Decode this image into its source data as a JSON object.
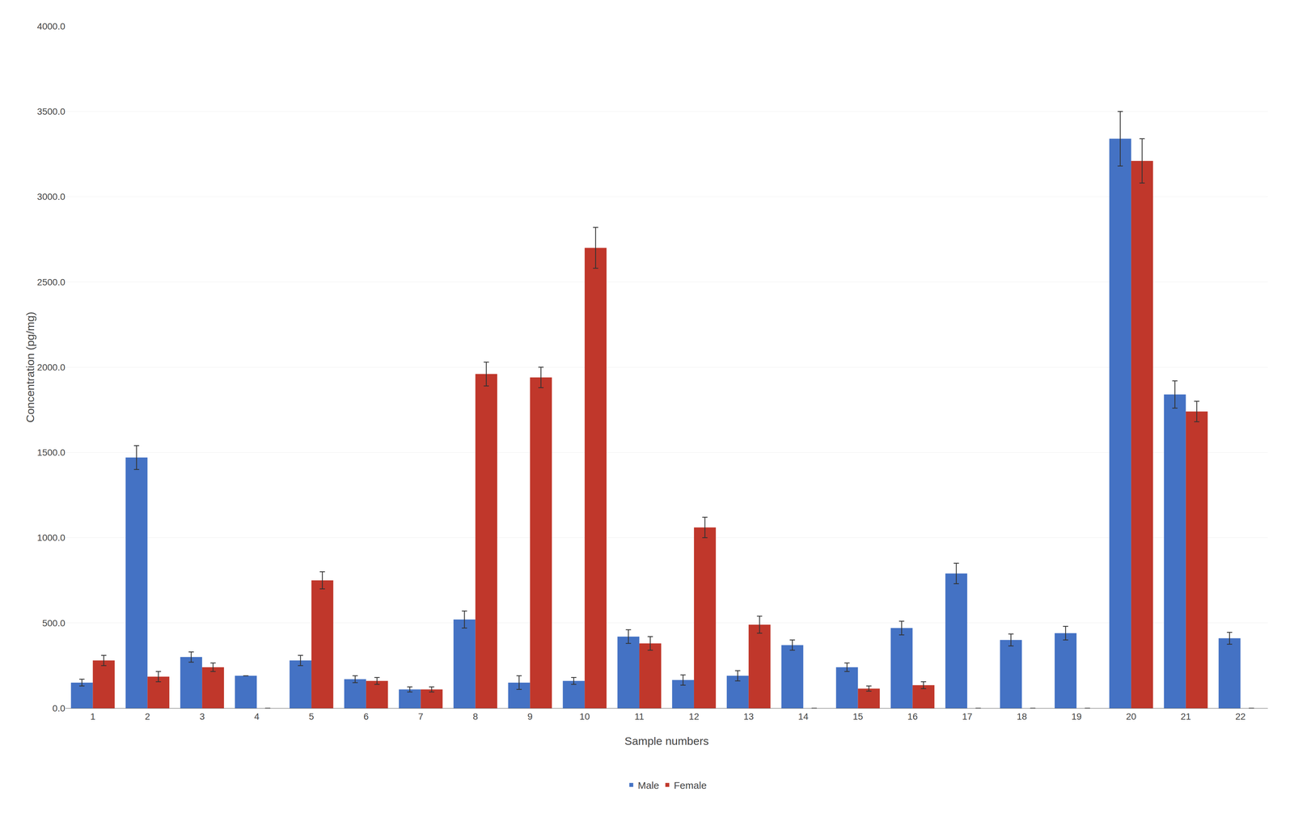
{
  "chart_data": {
    "type": "bar",
    "xlabel": "Sample numbers",
    "ylabel": "Concentration (pg/mg)",
    "categories": [
      1,
      2,
      3,
      4,
      5,
      6,
      7,
      8,
      9,
      10,
      11,
      12,
      13,
      14,
      15,
      16,
      17,
      18,
      19,
      20,
      21,
      22
    ],
    "series": [
      {
        "name": "Male",
        "color": "#4472C4",
        "values": [
          150,
          1470,
          300,
          190,
          280,
          170,
          110,
          520,
          150,
          160,
          420,
          165,
          190,
          370,
          240,
          470,
          790,
          400,
          440,
          3340,
          1840,
          410
        ],
        "errors": [
          20,
          70,
          30,
          0,
          30,
          20,
          15,
          50,
          40,
          20,
          40,
          30,
          30,
          30,
          25,
          40,
          60,
          35,
          40,
          160,
          80,
          35
        ]
      },
      {
        "name": "Female",
        "color": "#C0372B",
        "values": [
          280,
          185,
          240,
          0,
          750,
          160,
          110,
          1960,
          1940,
          2700,
          380,
          1060,
          490,
          0,
          115,
          135,
          0,
          0,
          0,
          3210,
          1740,
          0
        ],
        "errors": [
          30,
          30,
          25,
          0,
          50,
          20,
          15,
          70,
          60,
          120,
          40,
          60,
          50,
          0,
          15,
          20,
          0,
          0,
          0,
          130,
          60,
          0
        ]
      }
    ],
    "ylim": [
      0,
      4000
    ],
    "yticks": [
      {
        "value": 0,
        "label": "0.0"
      },
      {
        "value": 500,
        "label": "500.0"
      },
      {
        "value": 1000,
        "label": "1000.0"
      },
      {
        "value": 1500,
        "label": "1500.0"
      },
      {
        "value": 2000,
        "label": "2000.0"
      },
      {
        "value": 2500,
        "label": "2500.0"
      },
      {
        "value": 3000,
        "label": "3000.0"
      },
      {
        "value": 3500,
        "label": "3500.0"
      },
      {
        "value": 4000,
        "label": "4000.0"
      }
    ],
    "grid": true,
    "legend": "lower center"
  }
}
